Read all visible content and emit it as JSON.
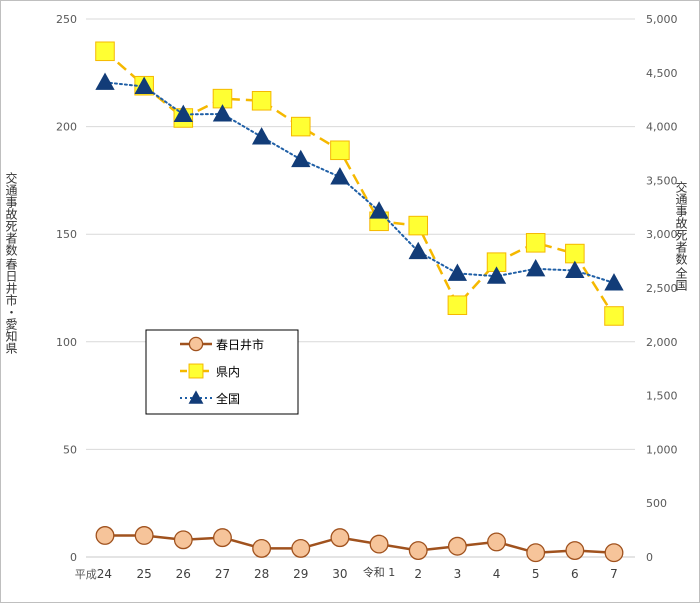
{
  "chart_data": {
    "type": "line",
    "categories": [
      "平成 24",
      "25",
      "26",
      "27",
      "28",
      "29",
      "30",
      "令和 1",
      "2",
      "3",
      "4",
      "5",
      "6",
      "7"
    ],
    "x_prefix": "平成",
    "reiwa_label": "令和",
    "left_axis": {
      "label_lines": [
        "春日井市・愛知県",
        "交通事故死者数"
      ],
      "ylim": [
        0,
        250
      ],
      "ticks": [
        0,
        50,
        100,
        150,
        200,
        250
      ],
      "tick_labels": [
        "0",
        "50",
        "100",
        "150",
        "200",
        "250"
      ]
    },
    "right_axis": {
      "label_lines": [
        "全国",
        "交通事故死者数"
      ],
      "ylim": [
        0,
        5000
      ],
      "ticks": [
        0,
        500,
        1000,
        1500,
        2000,
        2500,
        3000,
        3500,
        4000,
        4500,
        5000
      ],
      "tick_labels": [
        "0",
        "500",
        "1,000",
        "1,500",
        "2,000",
        "2,500",
        "3,000",
        "3,500",
        "4,000",
        "4,500",
        "5,000"
      ]
    },
    "grid": true,
    "legend_position": "center-left",
    "series": [
      {
        "name": "春日井市",
        "axis": "left",
        "color": "#a0521e",
        "fill": "#f6c49a",
        "marker": "circle",
        "dash": "solid",
        "values": [
          10,
          10,
          8,
          9,
          4,
          4,
          9,
          6,
          3,
          5,
          7,
          2,
          3,
          2
        ]
      },
      {
        "name": "県内",
        "axis": "left",
        "color": "#f5b800",
        "fill": "#ffff33",
        "marker": "square",
        "dash": "dashed",
        "values": [
          235,
          219,
          204,
          213,
          212,
          200,
          189,
          156,
          154,
          117,
          137,
          146,
          141,
          112
        ]
      },
      {
        "name": "全国",
        "axis": "right",
        "color": "#1f5fa6",
        "fill": "#123c78",
        "marker": "triangle",
        "dash": "dotted",
        "values": [
          4411,
          4373,
          4113,
          4117,
          3904,
          3694,
          3532,
          3215,
          2839,
          2636,
          2610,
          2678,
          2663,
          2547
        ]
      }
    ]
  }
}
